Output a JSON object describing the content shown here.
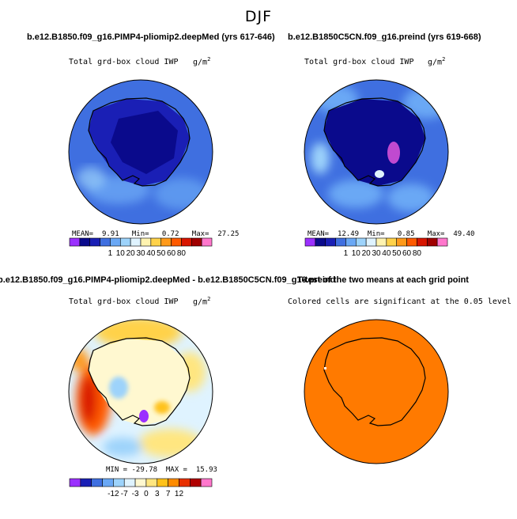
{
  "figure": {
    "title": "DJF",
    "colors": {
      "ocean_blue": "#3f6fe0",
      "deep_blue": "#1a1fb5",
      "navy": "#0a0a8c",
      "orange": "#ff7a00",
      "land_line": "#000000"
    }
  },
  "chart_data": [
    {
      "type": "heatmap",
      "title": "b.e12.B1850.f09_g16.PIMP4-pliomip2.deepMed (yrs 617-646)",
      "subtitle": "Total grd-box cloud IWP",
      "units": "g/m",
      "units_sup": "2",
      "region": "Antarctica polar stereographic",
      "stats": {
        "mean_label": "MEAN=",
        "mean": "9.91",
        "min_label": "Min=",
        "min": "0.72",
        "max_label": "Max=",
        "max": "27.25"
      },
      "colorbar": {
        "levels": [
          "1",
          "10",
          "20",
          "30",
          "40",
          "50",
          "60",
          "80"
        ],
        "colors": [
          "#9b30ff",
          "#0a0a8c",
          "#1a1fb5",
          "#3f6fe0",
          "#6aa8f5",
          "#9dd3fb",
          "#dff3ff",
          "#fff3b0",
          "#ffd24a",
          "#ff9a1a",
          "#ff5a00",
          "#d81500",
          "#a00000",
          "#ff77cc"
        ]
      }
    },
    {
      "type": "heatmap",
      "title": "b.e12.B1850C5CN.f09_g16.preind (yrs 619-668)",
      "subtitle": "Total grd-box cloud IWP",
      "units": "g/m",
      "units_sup": "2",
      "region": "Antarctica polar stereographic",
      "stats": {
        "mean_label": "MEAN=",
        "mean": "12.49",
        "min_label": "Min=",
        "min": "0.85",
        "max_label": "Max=",
        "max": "49.40"
      },
      "colorbar": {
        "levels": [
          "1",
          "10",
          "20",
          "30",
          "40",
          "50",
          "60",
          "80"
        ],
        "colors": [
          "#9b30ff",
          "#0a0a8c",
          "#1a1fb5",
          "#3f6fe0",
          "#6aa8f5",
          "#9dd3fb",
          "#dff3ff",
          "#fff3b0",
          "#ffd24a",
          "#ff9a1a",
          "#ff5a00",
          "#d81500",
          "#a00000",
          "#ff77cc"
        ]
      }
    },
    {
      "type": "heatmap",
      "title": "b.e12.B1850.f09_g16.PIMP4-pliomip2.deepMed - b.e12.B1850C5CN.f09_g16.preind",
      "subtitle": "Total grd-box cloud IWP",
      "units": "g/m",
      "units_sup": "2",
      "region": "Antarctica polar stereographic",
      "stats": {
        "min_label": "MIN =",
        "min": "-29.78",
        "max_label": "MAX =",
        "max": "15.93"
      },
      "colorbar": {
        "levels": [
          "-12",
          "-7",
          "-3",
          "0",
          "3",
          "7",
          "12"
        ],
        "colors": [
          "#9b30ff",
          "#1a1fb5",
          "#3f6fe0",
          "#6aa8f5",
          "#9dd3fb",
          "#dff3ff",
          "#fff8d0",
          "#ffe680",
          "#ffc21a",
          "#ff8c00",
          "#e83000",
          "#b00000",
          "#ff77cc"
        ]
      }
    },
    {
      "type": "heatmap",
      "title": "T-test of the two means at each grid point",
      "subtitle": "Colored cells are significant at the 0.05 level",
      "region": "Antarctica polar stereographic",
      "fill": "#ff7a00"
    }
  ]
}
